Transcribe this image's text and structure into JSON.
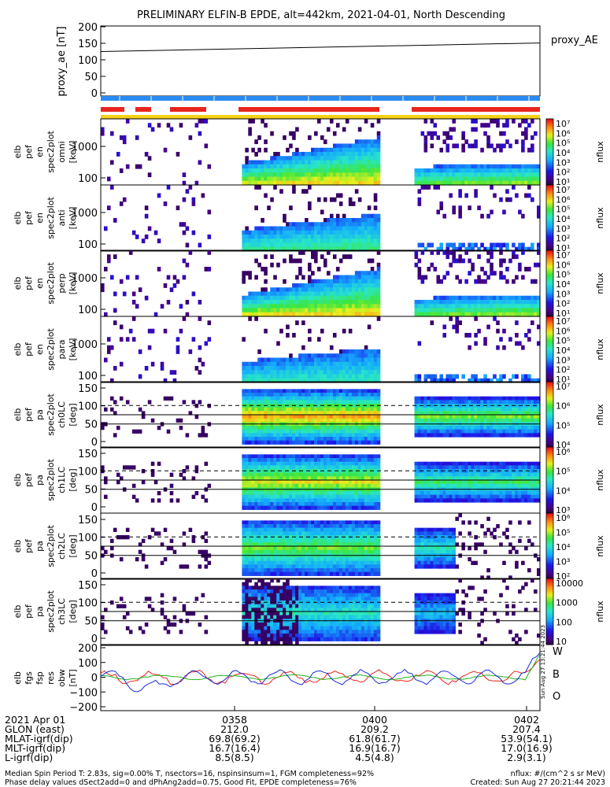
{
  "title": "PRELIMINARY ELFIN-B EPDE, alt=442km, 2021-04-01, North Descending",
  "colors": {
    "red": "#e8251c",
    "blue": "#2a8bf2",
    "yellow": "#f6d21a",
    "magB_red": "#e8251c",
    "magB_green": "#23b41f",
    "magB_blue": "#1c2bd8"
  },
  "chart_data": [
    {
      "type": "line",
      "panel": "proxy_ae",
      "ylabel": "proxy_ae [nT]",
      "right_label": "proxy_AE",
      "yticks": [
        "200",
        "150",
        "100",
        "50",
        "0"
      ],
      "ylim": [
        0,
        200
      ],
      "x_minutes": [
        0,
        5.5
      ],
      "series": [
        {
          "name": "proxy_AE",
          "x": [
            0,
            5.5
          ],
          "values": [
            125,
            151
          ]
        }
      ]
    },
    {
      "type": "heatmap",
      "panel": "en_1",
      "ylabel_lines": [
        "elb",
        "pef",
        "en",
        "spec2plot",
        "omni",
        "[keV]"
      ],
      "yticks": [
        "1000",
        "100"
      ],
      "colorbar_labels": [
        "10⁷",
        "10⁶",
        "10⁵",
        "10⁴",
        "10³",
        "10²",
        "10¹"
      ],
      "colorbar_title": "nflux"
    },
    {
      "type": "heatmap",
      "panel": "en_2",
      "ylabel_lines": [
        "elb",
        "pef",
        "en",
        "spec2plot",
        "anti",
        "[keV]"
      ],
      "yticks": [
        "1000",
        "100"
      ],
      "colorbar_labels": [
        "10⁷",
        "10⁶",
        "10⁵",
        "10⁴",
        "10³",
        "10²",
        "10¹"
      ],
      "colorbar_title": "nflux"
    },
    {
      "type": "heatmap",
      "panel": "en_3",
      "ylabel_lines": [
        "elb",
        "pef",
        "en",
        "spec2plot",
        "perp",
        "[keV]"
      ],
      "yticks": [
        "1000",
        "100"
      ],
      "colorbar_labels": [
        "10⁷",
        "10⁶",
        "10⁵",
        "10⁴",
        "10³",
        "10²",
        "10¹"
      ],
      "colorbar_title": "nflux"
    },
    {
      "type": "heatmap",
      "panel": "en_4",
      "ylabel_lines": [
        "elb",
        "pef",
        "en",
        "spec2plot",
        "para",
        "[keV]"
      ],
      "yticks": [
        "1000",
        "100"
      ],
      "colorbar_labels": [
        "10⁷",
        "10⁶",
        "10⁵",
        "10⁴",
        "10³",
        "10²",
        "10¹"
      ],
      "colorbar_title": "nflux"
    },
    {
      "type": "heatmap",
      "panel": "ch0LC",
      "ylabel_lines": [
        "elb",
        "pef",
        "pa",
        "spec2plot",
        "ch0LC",
        "[deg]"
      ],
      "yticks": [
        "150",
        "100",
        "50",
        "0"
      ],
      "colorbar_labels": [
        "10⁷",
        "10⁶",
        "10⁵",
        "10⁴"
      ],
      "colorbar_title": "nflux"
    },
    {
      "type": "heatmap",
      "panel": "ch1LC",
      "ylabel_lines": [
        "elb",
        "pef",
        "pa",
        "spec2plot",
        "ch1LC",
        "[deg]"
      ],
      "yticks": [
        "150",
        "100",
        "50",
        "0"
      ],
      "colorbar_labels": [
        "10⁶",
        "10⁵",
        "10⁴",
        "10³"
      ],
      "colorbar_title": "nflux"
    },
    {
      "type": "heatmap",
      "panel": "ch2LC",
      "ylabel_lines": [
        "elb",
        "pef",
        "pa",
        "spec2plot",
        "ch2LC",
        "[deg]"
      ],
      "yticks": [
        "150",
        "100",
        "50",
        "0"
      ],
      "colorbar_labels": [
        "10⁶",
        "10⁵",
        "10⁴",
        "10³",
        "10²"
      ],
      "colorbar_title": "nflux"
    },
    {
      "type": "heatmap",
      "panel": "ch3LC",
      "ylabel_lines": [
        "elb",
        "pef",
        "pa",
        "spec2plot",
        "ch3LC",
        "[deg]"
      ],
      "yticks": [
        "150",
        "100",
        "50",
        "0"
      ],
      "colorbar_labels": [
        "10000",
        "1000",
        "100",
        "10"
      ],
      "colorbar_title": "nflux"
    },
    {
      "type": "line",
      "panel": "dB",
      "ylabel_lines": [
        "elb",
        "fgs",
        "fsp",
        "res",
        "obw",
        "[nT]"
      ],
      "yticks": [
        "200",
        "100",
        "0",
        "−100",
        "−200"
      ],
      "ylim": [
        -200,
        200
      ],
      "right_labels": [
        "W",
        "B",
        "O"
      ],
      "series": [
        {
          "name": "W",
          "color": "red"
        },
        {
          "name": "B",
          "color": "green"
        },
        {
          "name": "O",
          "color": "blue"
        }
      ]
    }
  ],
  "x_axis": {
    "tick_labels": [
      "0358",
      "0400",
      "0402"
    ],
    "rows": [
      {
        "label": "2021 Apr 01",
        "values": [
          "",
          "",
          ""
        ]
      },
      {
        "label": "GLON (east)",
        "values": [
          "212.0",
          "209.2",
          "207.4"
        ]
      },
      {
        "label": "MLAT-igrf(dip)",
        "values": [
          "69.8(69.2)",
          "61.8(61.7)",
          "53.9(54.1)"
        ]
      },
      {
        "label": "MLT-igrf(dip)",
        "values": [
          "16.7(16.4)",
          "16.9(16.7)",
          "17.0(16.9)"
        ]
      },
      {
        "label": "L-igrf(dip)",
        "values": [
          "8.5(8.5)",
          "4.5(4.8)",
          "2.9(3.1)"
        ]
      }
    ]
  },
  "footer": {
    "left1": "Median Spin Period T: 2.83s, sig=0.00% T, nsectors=16, nspinsinsum=1, FGM completeness=92%",
    "left2": "Phase delay values dSect2add=0 and dPhAng2add=0.75, Good Fit, EPDE completeness=76%",
    "right1": "nflux: #/(cm^2 s sr MeV)",
    "right2": "Created: Sun Aug 27 20:21:44 2023",
    "stamp": "Sun Aug 27 13:21:44 2023"
  }
}
